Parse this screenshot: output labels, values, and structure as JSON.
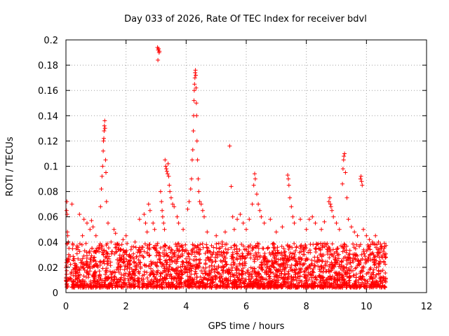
{
  "chart_data": {
    "type": "scatter",
    "title": "Day 033 of 2026, Rate Of TEC Index for receiver bdvl",
    "xlabel": "GPS time / hours",
    "ylabel": "ROTI / TECUs",
    "xlim": [
      0,
      12
    ],
    "ylim": [
      0,
      0.2
    ],
    "xticks": [
      0,
      2,
      4,
      6,
      8,
      10,
      12
    ],
    "yticks": [
      0,
      0.02,
      0.04,
      0.06,
      0.08,
      0.1,
      0.12,
      0.14,
      0.16,
      0.18,
      0.2
    ],
    "xtick_labels": [
      "0",
      "2",
      "4",
      "6",
      "8",
      "10",
      "12"
    ],
    "ytick_labels": [
      "0",
      "0.02",
      "0.04",
      "0.06",
      "0.08",
      "0.1",
      "0.12",
      "0.14",
      "0.16",
      "0.18",
      "0.2"
    ],
    "grid": true,
    "marker": "+",
    "color": "#ff0000",
    "series": [
      {
        "name": "ROTI",
        "points": [
          [
            0.02,
            0.065
          ],
          [
            0.03,
            0.072
          ],
          [
            0.04,
            0.062
          ],
          [
            0.05,
            0.048
          ],
          [
            0.06,
            0.045
          ],
          [
            0.08,
            0.04
          ],
          [
            0.1,
            0.035
          ],
          [
            0.2,
            0.07
          ],
          [
            0.45,
            0.062
          ],
          [
            0.55,
            0.045
          ],
          [
            0.6,
            0.058
          ],
          [
            0.7,
            0.055
          ],
          [
            0.8,
            0.05
          ],
          [
            0.85,
            0.057
          ],
          [
            0.9,
            0.052
          ],
          [
            1.0,
            0.045
          ],
          [
            1.15,
            0.068
          ],
          [
            1.18,
            0.082
          ],
          [
            1.2,
            0.092
          ],
          [
            1.22,
            0.1
          ],
          [
            1.24,
            0.112
          ],
          [
            1.25,
            0.12
          ],
          [
            1.26,
            0.122
          ],
          [
            1.27,
            0.128
          ],
          [
            1.28,
            0.132
          ],
          [
            1.29,
            0.136
          ],
          [
            1.3,
            0.13
          ],
          [
            1.32,
            0.105
          ],
          [
            1.33,
            0.095
          ],
          [
            1.35,
            0.072
          ],
          [
            1.4,
            0.055
          ],
          [
            1.5,
            0.04
          ],
          [
            1.6,
            0.05
          ],
          [
            1.65,
            0.047
          ],
          [
            1.7,
            0.038
          ],
          [
            1.9,
            0.042
          ],
          [
            2.0,
            0.045
          ],
          [
            2.3,
            0.04
          ],
          [
            2.45,
            0.058
          ],
          [
            2.6,
            0.062
          ],
          [
            2.65,
            0.055
          ],
          [
            2.7,
            0.048
          ],
          [
            2.75,
            0.07
          ],
          [
            2.8,
            0.065
          ],
          [
            2.9,
            0.055
          ],
          [
            2.95,
            0.05
          ],
          [
            3.05,
            0.194
          ],
          [
            3.07,
            0.192
          ],
          [
            3.08,
            0.193
          ],
          [
            3.1,
            0.19
          ],
          [
            3.11,
            0.191
          ],
          [
            3.06,
            0.184
          ],
          [
            3.15,
            0.08
          ],
          [
            3.18,
            0.072
          ],
          [
            3.2,
            0.065
          ],
          [
            3.22,
            0.06
          ],
          [
            3.25,
            0.055
          ],
          [
            3.28,
            0.05
          ],
          [
            3.3,
            0.105
          ],
          [
            3.32,
            0.1
          ],
          [
            3.34,
            0.098
          ],
          [
            3.36,
            0.096
          ],
          [
            3.38,
            0.094
          ],
          [
            3.4,
            0.102
          ],
          [
            3.42,
            0.092
          ],
          [
            3.44,
            0.085
          ],
          [
            3.46,
            0.08
          ],
          [
            3.5,
            0.075
          ],
          [
            3.55,
            0.07
          ],
          [
            3.6,
            0.068
          ],
          [
            3.7,
            0.06
          ],
          [
            3.75,
            0.055
          ],
          [
            3.9,
            0.05
          ],
          [
            4.05,
            0.066
          ],
          [
            4.1,
            0.072
          ],
          [
            4.15,
            0.082
          ],
          [
            4.18,
            0.09
          ],
          [
            4.2,
            0.105
          ],
          [
            4.22,
            0.113
          ],
          [
            4.24,
            0.128
          ],
          [
            4.25,
            0.14
          ],
          [
            4.26,
            0.152
          ],
          [
            4.27,
            0.16
          ],
          [
            4.28,
            0.165
          ],
          [
            4.29,
            0.17
          ],
          [
            4.3,
            0.174
          ],
          [
            4.31,
            0.176
          ],
          [
            4.32,
            0.172
          ],
          [
            4.33,
            0.162
          ],
          [
            4.34,
            0.15
          ],
          [
            4.35,
            0.14
          ],
          [
            4.36,
            0.12
          ],
          [
            4.38,
            0.105
          ],
          [
            4.4,
            0.09
          ],
          [
            4.42,
            0.08
          ],
          [
            4.45,
            0.072
          ],
          [
            4.5,
            0.07
          ],
          [
            4.55,
            0.065
          ],
          [
            4.6,
            0.06
          ],
          [
            4.7,
            0.048
          ],
          [
            5.0,
            0.045
          ],
          [
            5.2,
            0.04
          ],
          [
            5.3,
            0.048
          ],
          [
            5.45,
            0.116
          ],
          [
            5.5,
            0.084
          ],
          [
            5.55,
            0.06
          ],
          [
            5.6,
            0.05
          ],
          [
            5.7,
            0.058
          ],
          [
            5.8,
            0.062
          ],
          [
            5.9,
            0.055
          ],
          [
            6.0,
            0.05
          ],
          [
            6.1,
            0.058
          ],
          [
            6.2,
            0.07
          ],
          [
            6.25,
            0.085
          ],
          [
            6.28,
            0.094
          ],
          [
            6.3,
            0.09
          ],
          [
            6.35,
            0.078
          ],
          [
            6.4,
            0.07
          ],
          [
            6.45,
            0.065
          ],
          [
            6.5,
            0.06
          ],
          [
            6.6,
            0.055
          ],
          [
            6.8,
            0.058
          ],
          [
            7.0,
            0.048
          ],
          [
            7.2,
            0.052
          ],
          [
            7.38,
            0.093
          ],
          [
            7.4,
            0.09
          ],
          [
            7.42,
            0.085
          ],
          [
            7.45,
            0.075
          ],
          [
            7.5,
            0.068
          ],
          [
            7.55,
            0.06
          ],
          [
            7.6,
            0.055
          ],
          [
            7.8,
            0.058
          ],
          [
            8.0,
            0.05
          ],
          [
            8.1,
            0.058
          ],
          [
            8.2,
            0.06
          ],
          [
            8.3,
            0.055
          ],
          [
            8.5,
            0.05
          ],
          [
            8.6,
            0.056
          ],
          [
            8.75,
            0.072
          ],
          [
            8.78,
            0.075
          ],
          [
            8.8,
            0.07
          ],
          [
            8.82,
            0.068
          ],
          [
            8.85,
            0.065
          ],
          [
            8.9,
            0.06
          ],
          [
            9.0,
            0.055
          ],
          [
            9.1,
            0.05
          ],
          [
            9.2,
            0.086
          ],
          [
            9.22,
            0.098
          ],
          [
            9.24,
            0.105
          ],
          [
            9.25,
            0.108
          ],
          [
            9.27,
            0.11
          ],
          [
            9.3,
            0.095
          ],
          [
            9.35,
            0.075
          ],
          [
            9.4,
            0.058
          ],
          [
            9.5,
            0.052
          ],
          [
            9.6,
            0.048
          ],
          [
            9.7,
            0.045
          ],
          [
            9.8,
            0.09
          ],
          [
            9.82,
            0.092
          ],
          [
            9.84,
            0.088
          ],
          [
            9.86,
            0.085
          ],
          [
            9.9,
            0.05
          ],
          [
            10.0,
            0.045
          ],
          [
            10.1,
            0.042
          ],
          [
            10.2,
            0.04
          ],
          [
            10.3,
            0.045
          ],
          [
            10.4,
            0.04
          ],
          [
            10.5,
            0.035
          ],
          [
            10.6,
            0.03
          ]
        ]
      }
    ],
    "dense_band": {
      "note": "dense cloud of small ROTI values from 0 to about 10.65 hours",
      "x_range": [
        0,
        10.65
      ],
      "y_range": [
        0,
        0.035
      ]
    }
  }
}
